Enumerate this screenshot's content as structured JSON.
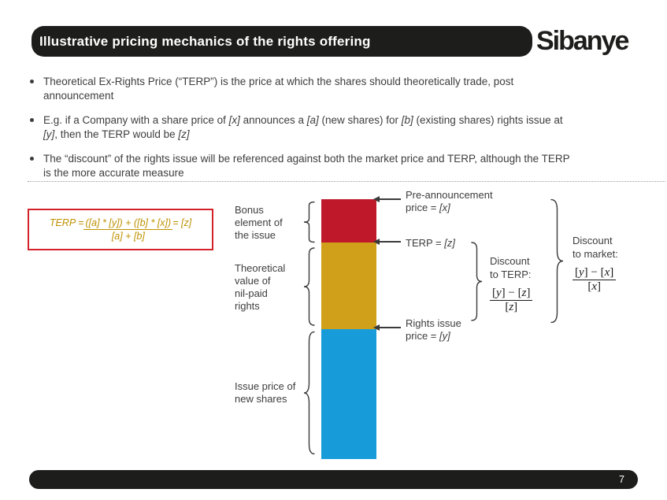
{
  "slide": {
    "title": "Illustrative pricing mechanics of the rights offering",
    "logo": "Sibanye",
    "page_number": "7"
  },
  "bullets": [
    {
      "segments": [
        {
          "t": "Theoretical Ex-Rights Price (“TERP”) is the price at which the shares should theoretically trade, post"
        },
        {
          "br": true
        },
        {
          "t": "announcement"
        }
      ]
    },
    {
      "segments": [
        {
          "t": "E.g. if a Company with a share price of "
        },
        {
          "t": "[x]",
          "i": true
        },
        {
          "t": " announces a "
        },
        {
          "t": "[a]",
          "i": true
        },
        {
          "t": " (new shares) for "
        },
        {
          "t": "[b]",
          "i": true
        },
        {
          "t": " (existing shares) rights issue at"
        },
        {
          "br": true
        },
        {
          "t": "[y]",
          "i": true
        },
        {
          "t": ", then the TERP would be "
        },
        {
          "t": "[z]",
          "i": true
        }
      ]
    },
    {
      "segments": [
        {
          "t": "The “discount” of the rights issue will be referenced against both the market price and TERP, although the TERP"
        },
        {
          "br": true
        },
        {
          "t": "is the more accurate measure"
        }
      ]
    }
  ],
  "terp_box": {
    "prefix": "TERP = ",
    "numerator": "([a] * [y]) + ([b] * [x])",
    "denominator": "[a] + [b]",
    "suffix": " = [z]"
  },
  "diagram": {
    "colors": {
      "bonus_red": "#c0182b",
      "nil_paid_gold": "#d0a01a",
      "issue_blue": "#189cd9"
    },
    "left_labels": {
      "bonus": [
        {
          "t": "Bonus"
        },
        {
          "br": true
        },
        {
          "t": "element of"
        },
        {
          "br": true
        },
        {
          "t": "the issue"
        }
      ],
      "nil_paid": [
        {
          "t": "Theoretical"
        },
        {
          "br": true
        },
        {
          "t": "value of"
        },
        {
          "br": true
        },
        {
          "t": "nil-paid"
        },
        {
          "br": true
        },
        {
          "t": "rights"
        }
      ],
      "issue_price": [
        {
          "t": "Issue price of"
        },
        {
          "br": true
        },
        {
          "t": "new shares"
        }
      ]
    },
    "annotations": {
      "pre_announcement": [
        {
          "t": "Pre-announcement"
        },
        {
          "br": true
        },
        {
          "t": "price = "
        },
        {
          "t": "[x]",
          "i": true
        }
      ],
      "terp": [
        {
          "t": "TERP = "
        },
        {
          "t": "[z]",
          "i": true
        }
      ],
      "rights_issue": [
        {
          "t": "Rights issue"
        },
        {
          "br": true
        },
        {
          "t": "price = "
        },
        {
          "t": "[y]",
          "i": true
        }
      ]
    },
    "discount_terp": {
      "title": [
        {
          "t": "Discount"
        },
        {
          "br": true
        },
        {
          "t": "to TERP:"
        }
      ],
      "num": [
        {
          "t": "["
        },
        {
          "t": "y",
          "i": true
        },
        {
          "t": "] − ["
        },
        {
          "t": "z",
          "i": true
        },
        {
          "t": "]"
        }
      ],
      "den": [
        {
          "t": "["
        },
        {
          "t": "z",
          "i": true
        },
        {
          "t": "]"
        }
      ]
    },
    "discount_market": {
      "title": [
        {
          "t": "Discount"
        },
        {
          "br": true
        },
        {
          "t": "to market:"
        }
      ],
      "num": [
        {
          "t": "["
        },
        {
          "t": "y",
          "i": true
        },
        {
          "t": "] − ["
        },
        {
          "t": "x",
          "i": true
        },
        {
          "t": "]"
        }
      ],
      "den": [
        {
          "t": "["
        },
        {
          "t": "x",
          "i": true
        },
        {
          "t": "]"
        }
      ]
    }
  },
  "theme": {
    "bar_black": "#1d1d1b",
    "text_gray": "#3d3d3d",
    "formula_gold": "#bf9000",
    "box_border_red": "#d3222a"
  }
}
